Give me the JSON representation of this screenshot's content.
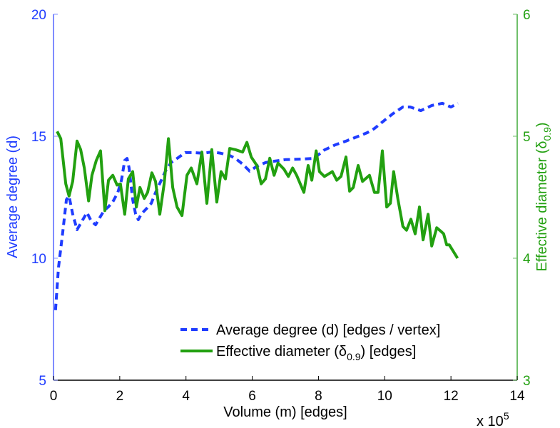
{
  "chart_data": {
    "type": "line",
    "title": "",
    "xlabel": "Volume (m) [edges]",
    "x_multiplier": "x 10",
    "x_multiplier_exp": "5",
    "ylabel_left": "Average degree (d)",
    "ylabel_right": "Effective diameter (δ",
    "ylabel_right_sub": "0.9",
    "ylabel_right_end": ")",
    "xlim": [
      0,
      14
    ],
    "ylim_left": [
      5,
      20
    ],
    "ylim_right": [
      3,
      6
    ],
    "xticks": [
      "0",
      "2",
      "4",
      "6",
      "8",
      "10",
      "12",
      "14"
    ],
    "yticks_left": [
      "5",
      "10",
      "15",
      "20"
    ],
    "yticks_right": [
      "3",
      "4",
      "5",
      "6"
    ],
    "grid": false,
    "legend_position": "bottom-right",
    "colors": {
      "left": "#1f3cff",
      "right": "#22a010",
      "left_axis": "#7f8cff",
      "right_axis": "#6fbf6a"
    },
    "series": [
      {
        "name": "Average degree (d) [edges / vertex]",
        "axis": "left",
        "style": "dashed",
        "x": [
          0.06,
          0.15,
          0.28,
          0.39,
          0.47,
          0.58,
          0.71,
          0.86,
          1.01,
          1.14,
          1.27,
          1.4,
          1.53,
          1.66,
          1.79,
          1.94,
          2.05,
          2.15,
          2.22,
          2.28,
          2.39,
          2.48,
          2.56,
          2.65,
          2.8,
          2.95,
          3.08,
          3.23,
          3.38,
          3.55,
          3.73,
          3.98,
          4.24,
          4.52,
          4.8,
          5.06,
          5.32,
          5.49,
          5.71,
          5.92,
          6.14,
          6.4,
          6.68,
          7.0,
          7.43,
          7.86,
          8.18,
          8.51,
          8.83,
          9.15,
          9.48,
          9.69,
          9.91,
          10.23,
          10.55,
          10.77,
          11.09,
          11.42,
          11.74,
          12.0,
          12.21
        ],
        "y": [
          7.87,
          9.62,
          11.08,
          12.4,
          12.54,
          11.81,
          11.17,
          11.52,
          11.87,
          11.52,
          11.37,
          11.67,
          11.96,
          12.11,
          12.31,
          12.69,
          13.19,
          14.01,
          14.09,
          13.71,
          12.4,
          11.81,
          11.58,
          11.81,
          12.02,
          12.25,
          12.69,
          13.13,
          13.57,
          13.92,
          14.09,
          14.33,
          14.33,
          14.3,
          14.36,
          14.3,
          14.21,
          14.09,
          13.86,
          13.57,
          13.77,
          13.92,
          13.98,
          14.04,
          14.06,
          14.09,
          14.44,
          14.65,
          14.8,
          14.97,
          15.15,
          15.32,
          15.56,
          15.91,
          16.2,
          16.2,
          16.05,
          16.26,
          16.35,
          16.2,
          16.35
        ]
      },
      {
        "name": "Effective diameter (δ",
        "name_sub": "0.9",
        "name_end": ") [edges]",
        "axis": "right",
        "style": "solid",
        "x": [
          0.11,
          0.22,
          0.37,
          0.47,
          0.58,
          0.71,
          0.82,
          0.93,
          1.06,
          1.16,
          1.29,
          1.42,
          1.55,
          1.66,
          1.79,
          1.92,
          2.02,
          2.15,
          2.26,
          2.39,
          2.5,
          2.61,
          2.74,
          2.84,
          2.97,
          3.08,
          3.21,
          3.34,
          3.47,
          3.6,
          3.73,
          3.88,
          4.03,
          4.16,
          4.33,
          4.48,
          4.63,
          4.78,
          4.93,
          5.06,
          5.19,
          5.32,
          5.49,
          5.71,
          5.84,
          5.97,
          6.14,
          6.27,
          6.4,
          6.53,
          6.66,
          6.78,
          6.96,
          7.09,
          7.22,
          7.34,
          7.56,
          7.69,
          7.8,
          7.93,
          8.03,
          8.18,
          8.42,
          8.55,
          8.68,
          8.83,
          8.94,
          9.05,
          9.2,
          9.33,
          9.54,
          9.69,
          9.8,
          9.93,
          10.06,
          10.17,
          10.27,
          10.4,
          10.55,
          10.66,
          10.79,
          10.92,
          11.05,
          11.16,
          11.31,
          11.42,
          11.57,
          11.7,
          11.78,
          11.87,
          11.95,
          12.2
        ],
        "y": [
          5.04,
          4.98,
          4.61,
          4.51,
          4.63,
          4.96,
          4.89,
          4.74,
          4.47,
          4.68,
          4.8,
          4.88,
          4.39,
          4.64,
          4.68,
          4.6,
          4.61,
          4.36,
          4.65,
          4.71,
          4.42,
          4.58,
          4.49,
          4.54,
          4.7,
          4.63,
          4.36,
          4.61,
          4.98,
          4.58,
          4.42,
          4.35,
          4.68,
          4.74,
          4.61,
          4.87,
          4.45,
          4.89,
          4.46,
          4.71,
          4.65,
          4.9,
          4.89,
          4.87,
          4.95,
          4.83,
          4.76,
          4.61,
          4.65,
          4.82,
          4.68,
          4.78,
          4.73,
          4.67,
          4.74,
          4.68,
          4.54,
          4.76,
          4.64,
          4.88,
          4.71,
          4.67,
          4.71,
          4.64,
          4.67,
          4.83,
          4.55,
          4.58,
          4.76,
          4.63,
          4.68,
          4.54,
          4.54,
          4.88,
          4.42,
          4.45,
          4.71,
          4.48,
          4.26,
          4.23,
          4.32,
          4.2,
          4.42,
          4.15,
          4.36,
          4.1,
          4.25,
          4.22,
          4.2,
          4.11,
          4.11,
          4.0
        ]
      }
    ]
  }
}
